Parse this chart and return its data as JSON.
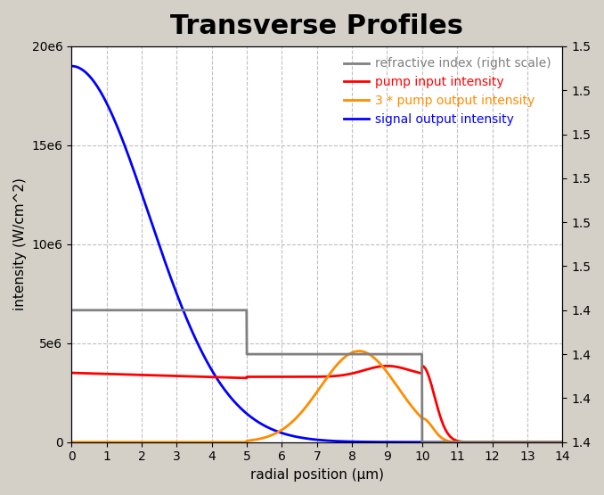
{
  "title": "Transverse Profiles",
  "xlabel": "radial position (µm)",
  "ylabel": "intensity (W/cm^2)",
  "xlim": [
    0,
    14
  ],
  "ylim_left": [
    0,
    20000000
  ],
  "ylim_right": [
    1.42,
    1.51
  ],
  "yticks_left": [
    0,
    5000000,
    10000000,
    15000000,
    20000000
  ],
  "yticks_right": [
    1.42,
    1.43,
    1.44,
    1.45,
    1.46,
    1.47,
    1.48,
    1.49,
    1.5,
    1.51
  ],
  "xticks": [
    0,
    1,
    2,
    3,
    4,
    5,
    6,
    7,
    8,
    9,
    10,
    11,
    12,
    13,
    14
  ],
  "colors": {
    "refractive_index": "#808080",
    "pump_input": "#ff0000",
    "pump_output_3x": "#ff8c00",
    "signal_output": "#0000ff"
  },
  "legend_labels": [
    "refractive index (right scale)",
    "pump input intensity",
    "3 * pump output intensity",
    "signal output intensity"
  ],
  "legend_colors": [
    "#808080",
    "#ff0000",
    "#ff8c00",
    "#0000ff"
  ],
  "grid_color": "#c0c0c0",
  "title_fontsize": 22,
  "label_fontsize": 11,
  "legend_fontsize": 10,
  "tick_fontsize": 10
}
